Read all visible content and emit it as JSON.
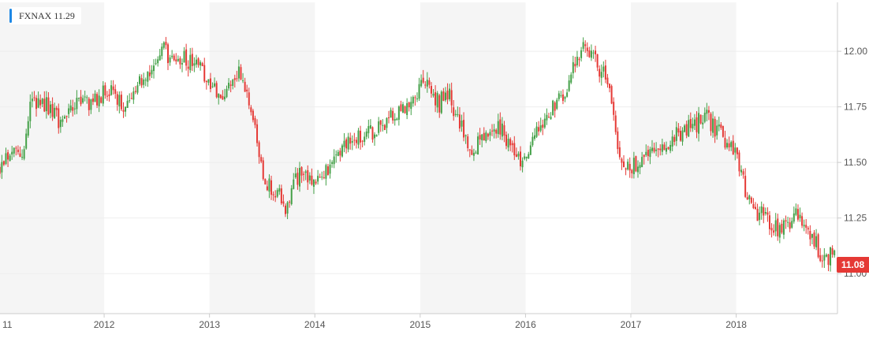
{
  "legend": {
    "ticker": "FXNAX",
    "value": "11.29"
  },
  "last_price": "11.08",
  "colors": {
    "up": "#43a047",
    "down": "#e53935",
    "shade": "#f5f5f5",
    "grid": "#eeeeee",
    "axis_text": "#555555",
    "legend_accent": "#1e88e5",
    "price_tag": "#e53935"
  },
  "chart_data": {
    "type": "candlestick",
    "title": "",
    "xlabel": "",
    "ylabel": "",
    "ticker": "FXNAX",
    "ylim": [
      10.82,
      12.22
    ],
    "y_ticks": [
      "12.00",
      "11.75",
      "11.50",
      "11.25",
      "11.00"
    ],
    "x_ticks": [
      "11",
      "2012",
      "2013",
      "2014",
      "2015",
      "2016",
      "2017",
      "2018"
    ],
    "x_range": [
      2011.0,
      2018.95
    ],
    "shaded_years": [
      2011,
      2013,
      2015,
      2017
    ],
    "grid": true,
    "y_axis_position": "right",
    "last_price": 11.08,
    "trend": [
      [
        2011.0,
        11.48
      ],
      [
        2011.1,
        11.55
      ],
      [
        2011.22,
        11.53
      ],
      [
        2011.3,
        11.78
      ],
      [
        2011.45,
        11.76
      ],
      [
        2011.58,
        11.68
      ],
      [
        2011.72,
        11.76
      ],
      [
        2011.9,
        11.78
      ],
      [
        2012.05,
        11.83
      ],
      [
        2012.2,
        11.76
      ],
      [
        2012.35,
        11.86
      ],
      [
        2012.48,
        11.93
      ],
      [
        2012.55,
        12.01
      ],
      [
        2012.62,
        11.98
      ],
      [
        2012.72,
        11.97
      ],
      [
        2012.82,
        11.95
      ],
      [
        2012.92,
        11.93
      ],
      [
        2013.0,
        11.86
      ],
      [
        2013.08,
        11.8
      ],
      [
        2013.18,
        11.82
      ],
      [
        2013.28,
        11.9
      ],
      [
        2013.36,
        11.8
      ],
      [
        2013.45,
        11.6
      ],
      [
        2013.52,
        11.4
      ],
      [
        2013.62,
        11.38
      ],
      [
        2013.72,
        11.3
      ],
      [
        2013.8,
        11.42
      ],
      [
        2013.9,
        11.47
      ],
      [
        2014.0,
        11.4
      ],
      [
        2014.08,
        11.45
      ],
      [
        2014.2,
        11.52
      ],
      [
        2014.32,
        11.58
      ],
      [
        2014.45,
        11.62
      ],
      [
        2014.58,
        11.64
      ],
      [
        2014.7,
        11.7
      ],
      [
        2014.8,
        11.72
      ],
      [
        2014.92,
        11.74
      ],
      [
        2015.02,
        11.88
      ],
      [
        2015.1,
        11.83
      ],
      [
        2015.18,
        11.76
      ],
      [
        2015.25,
        11.83
      ],
      [
        2015.35,
        11.7
      ],
      [
        2015.42,
        11.62
      ],
      [
        2015.5,
        11.56
      ],
      [
        2015.62,
        11.63
      ],
      [
        2015.75,
        11.66
      ],
      [
        2015.85,
        11.58
      ],
      [
        2015.95,
        11.52
      ],
      [
        2016.05,
        11.58
      ],
      [
        2016.15,
        11.68
      ],
      [
        2016.28,
        11.76
      ],
      [
        2016.38,
        11.82
      ],
      [
        2016.48,
        11.96
      ],
      [
        2016.55,
        12.01
      ],
      [
        2016.65,
        11.96
      ],
      [
        2016.72,
        11.91
      ],
      [
        2016.8,
        11.85
      ],
      [
        2016.86,
        11.58
      ],
      [
        2016.95,
        11.46
      ],
      [
        2017.05,
        11.5
      ],
      [
        2017.18,
        11.52
      ],
      [
        2017.28,
        11.56
      ],
      [
        2017.4,
        11.62
      ],
      [
        2017.5,
        11.64
      ],
      [
        2017.62,
        11.67
      ],
      [
        2017.7,
        11.72
      ],
      [
        2017.8,
        11.65
      ],
      [
        2017.9,
        11.6
      ],
      [
        2018.0,
        11.54
      ],
      [
        2018.1,
        11.34
      ],
      [
        2018.18,
        11.28
      ],
      [
        2018.26,
        11.26
      ],
      [
        2018.36,
        11.2
      ],
      [
        2018.46,
        11.22
      ],
      [
        2018.58,
        11.26
      ],
      [
        2018.66,
        11.23
      ],
      [
        2018.74,
        11.15
      ],
      [
        2018.82,
        11.07
      ],
      [
        2018.9,
        11.08
      ]
    ]
  }
}
